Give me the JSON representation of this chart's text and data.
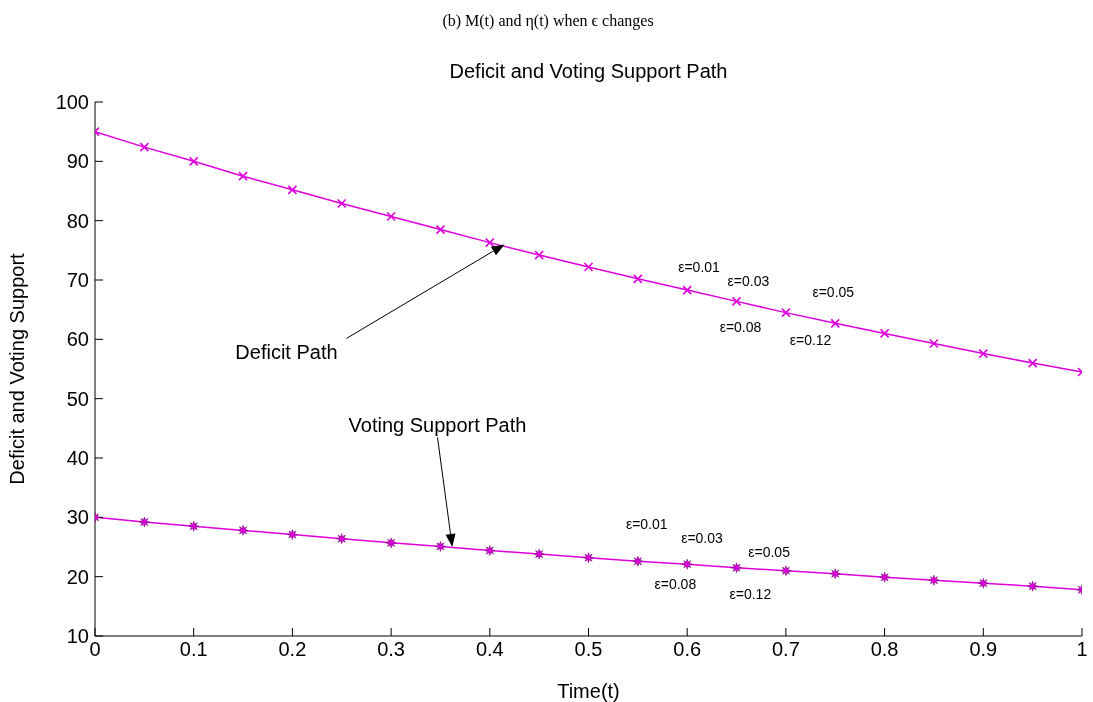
{
  "chart_data": {
    "type": "line",
    "title": "Deficit and Voting Support Path",
    "subtitle": "(b) M(t) and η(t) when ϵ changes",
    "xlabel": "Time(t)",
    "ylabel": "Deficit and Voting Support",
    "x": [
      0,
      0.05,
      0.1,
      0.15,
      0.2,
      0.25,
      0.3,
      0.35,
      0.4,
      0.45,
      0.5,
      0.55,
      0.6,
      0.65,
      0.7,
      0.75,
      0.8,
      0.85,
      0.9,
      0.95,
      1
    ],
    "series": [
      {
        "color": "#dd00dd",
        "marker": "cross",
        "values": [
          95,
          92.4,
          90.0,
          87.5,
          85.2,
          82.9,
          80.7,
          78.5,
          76.3,
          74.2,
          72.2,
          70.2,
          68.3,
          66.4,
          64.5,
          62.7,
          61.0,
          59.3,
          57.6,
          56.0,
          54.5
        ]
      },
      {
        "color": "#dd00dd",
        "marker": "star",
        "values": [
          30,
          29.2,
          28.5,
          27.8,
          27.1,
          26.4,
          25.7,
          25.1,
          24.4,
          23.8,
          23.2,
          22.6,
          22.1,
          21.5,
          21.0,
          20.5,
          19.9,
          19.4,
          18.9,
          18.4,
          17.8
        ]
      }
    ],
    "xlim": [
      0,
      1
    ],
    "xticks": [
      0,
      0.1,
      0.2,
      0.3,
      0.4,
      0.5,
      0.6,
      0.7,
      0.8,
      0.9,
      1
    ],
    "ylim": [
      10,
      100
    ],
    "yticks": [
      10,
      20,
      30,
      40,
      50,
      60,
      70,
      80,
      90,
      100
    ],
    "grid": false,
    "legend": false,
    "line_style": "solid",
    "annotations": [
      "Deficit Path",
      "Voting Support Path",
      "ε=0.01",
      "ε=0.03",
      "ε=0.05",
      "ε=0.08",
      "ε=0.12",
      "ε=0.01",
      "ε=0.03",
      "ε=0.05",
      "ε=0.08",
      "ε=0.12"
    ]
  }
}
